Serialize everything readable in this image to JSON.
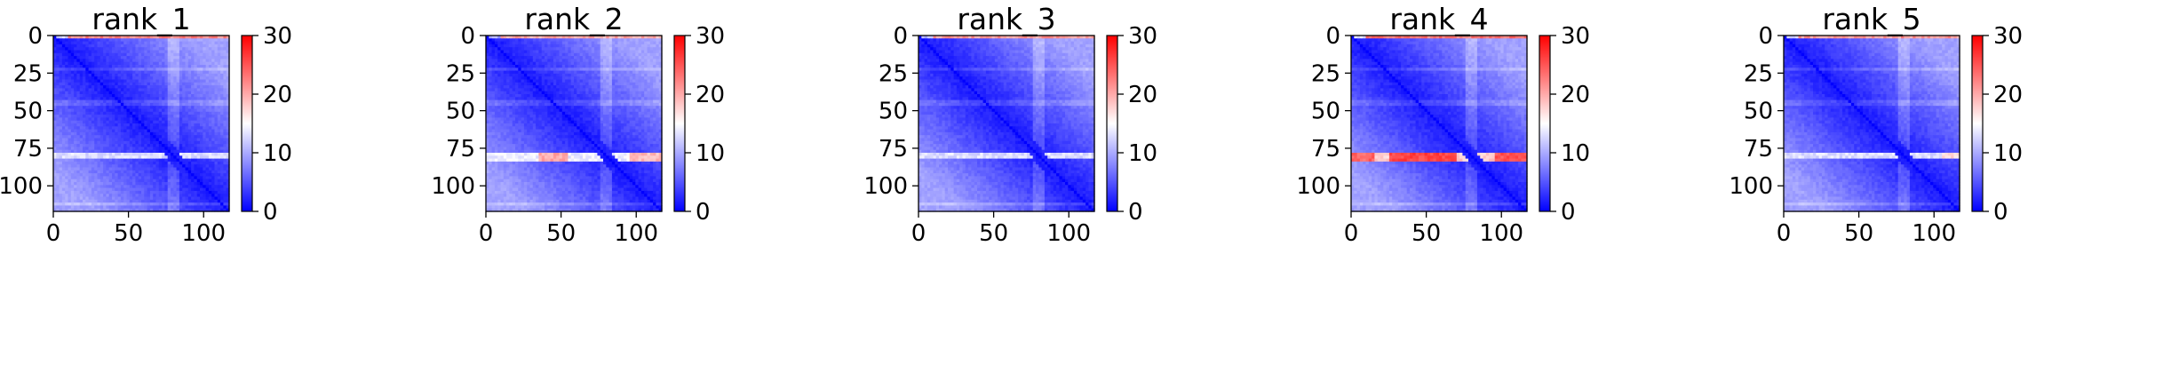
{
  "figure": {
    "colormap": {
      "name": "bwr",
      "colors": [
        "#0000ff",
        "#ffffff",
        "#ff0000"
      ]
    }
  },
  "chart_data": [
    {
      "type": "heatmap",
      "title": "rank_1",
      "xlabel": "",
      "ylabel": "",
      "x_ticks": [
        "0",
        "50",
        "100"
      ],
      "y_ticks": [
        "0",
        "25",
        "50",
        "75",
        "100"
      ],
      "xlim": [
        0,
        117
      ],
      "ylim": [
        117,
        0
      ],
      "colorbar": {
        "ticks": [
          "0",
          "10",
          "20",
          "30"
        ],
        "range": [
          0,
          30
        ]
      },
      "features": {
        "top_edge": 22,
        "bright_band_row": 80,
        "band_level": 13,
        "band_segments": [],
        "vertical_band_col": 80
      }
    },
    {
      "type": "heatmap",
      "title": "rank_2",
      "xlabel": "",
      "ylabel": "",
      "x_ticks": [
        "0",
        "50",
        "100"
      ],
      "y_ticks": [
        "0",
        "25",
        "50",
        "75",
        "100"
      ],
      "xlim": [
        0,
        117
      ],
      "ylim": [
        117,
        0
      ],
      "colorbar": {
        "ticks": [
          "0",
          "10",
          "20",
          "30"
        ],
        "range": [
          0,
          30
        ]
      },
      "features": {
        "top_edge": 20,
        "bright_band_row": 81,
        "band_level": 14,
        "band_segments": [
          [
            35,
            55,
            20
          ],
          [
            95,
            117,
            19
          ]
        ],
        "vertical_band_col": 80
      }
    },
    {
      "type": "heatmap",
      "title": "rank_3",
      "xlabel": "",
      "ylabel": "",
      "x_ticks": [
        "0",
        "50",
        "100"
      ],
      "y_ticks": [
        "0",
        "25",
        "50",
        "75",
        "100"
      ],
      "xlim": [
        0,
        117
      ],
      "ylim": [
        117,
        0
      ],
      "colorbar": {
        "ticks": [
          "0",
          "10",
          "20",
          "30"
        ],
        "range": [
          0,
          30
        ]
      },
      "features": {
        "top_edge": 21,
        "bright_band_row": 80,
        "band_level": 13,
        "band_segments": [],
        "vertical_band_col": 80
      }
    },
    {
      "type": "heatmap",
      "title": "rank_4",
      "xlabel": "",
      "ylabel": "",
      "x_ticks": [
        "0",
        "50",
        "100"
      ],
      "y_ticks": [
        "0",
        "25",
        "50",
        "75",
        "100"
      ],
      "xlim": [
        0,
        117
      ],
      "ylim": [
        117,
        0
      ],
      "colorbar": {
        "ticks": [
          "0",
          "10",
          "20",
          "30"
        ],
        "range": [
          0,
          30
        ]
      },
      "features": {
        "top_edge": 23,
        "bright_band_row": 81,
        "band_level": 18,
        "band_segments": [
          [
            0,
            15,
            24
          ],
          [
            25,
            70,
            26
          ],
          [
            95,
            117,
            25
          ]
        ],
        "vertical_band_col": 80
      }
    },
    {
      "type": "heatmap",
      "title": "rank_5",
      "xlabel": "",
      "ylabel": "",
      "x_ticks": [
        "0",
        "50",
        "100"
      ],
      "y_ticks": [
        "0",
        "25",
        "50",
        "75",
        "100"
      ],
      "xlim": [
        0,
        117
      ],
      "ylim": [
        117,
        0
      ],
      "colorbar": {
        "ticks": [
          "0",
          "10",
          "20",
          "30"
        ],
        "range": [
          0,
          30
        ]
      },
      "features": {
        "top_edge": 21,
        "bright_band_row": 80,
        "band_level": 13,
        "band_segments": [
          [
            105,
            117,
            17
          ]
        ],
        "vertical_band_col": 80
      }
    }
  ]
}
